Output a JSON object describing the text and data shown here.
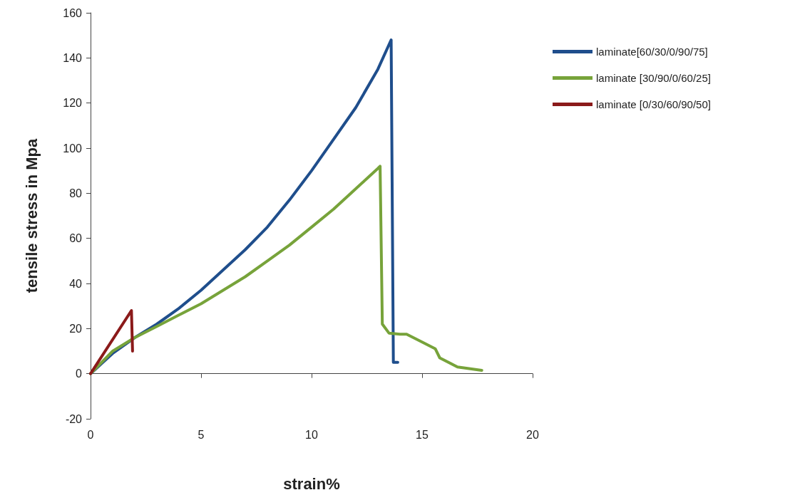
{
  "chart_data": {
    "type": "line",
    "xlabel": "strain%",
    "ylabel": "tensile stress in Mpa",
    "xlim": [
      0,
      20
    ],
    "xticks": [
      0,
      5,
      10,
      15,
      20
    ],
    "ylim": [
      -20,
      160
    ],
    "yticks": [
      -20,
      0,
      20,
      40,
      60,
      80,
      100,
      120,
      140,
      160
    ],
    "legend": "right",
    "marker": "none",
    "line_style": "solid",
    "series": [
      {
        "name": "laminate[60/30/0/90/75]",
        "color": "#1f4e8c",
        "x": [
          0,
          1,
          2,
          3,
          4,
          5,
          6,
          7,
          8,
          9,
          10,
          11,
          12,
          13,
          13.6,
          13.7,
          13.9
        ],
        "values": [
          0,
          9,
          16,
          22,
          29,
          37,
          46,
          55,
          65,
          77,
          90,
          104,
          118,
          135,
          148,
          5,
          5
        ]
      },
      {
        "name": "laminate [30/90/0/60/25]",
        "color": "#77a33a",
        "x": [
          0,
          1,
          2,
          3,
          4,
          5,
          6,
          7,
          8,
          9,
          10,
          11,
          12,
          13,
          13.1,
          13.2,
          13.5,
          14,
          14.3,
          15,
          15.6,
          15.8,
          16.6,
          17.7
        ],
        "values": [
          0,
          10,
          16,
          21,
          26,
          31,
          37,
          43,
          50,
          57,
          65,
          73,
          82,
          91,
          92,
          22,
          18,
          17.5,
          17.5,
          14,
          11,
          7,
          3,
          1.5
        ]
      },
      {
        "name": "laminate [0/30/60/90/50]",
        "color": "#8b1a1a",
        "x": [
          0,
          1.85,
          1.9
        ],
        "values": [
          0,
          28,
          10
        ]
      }
    ]
  }
}
